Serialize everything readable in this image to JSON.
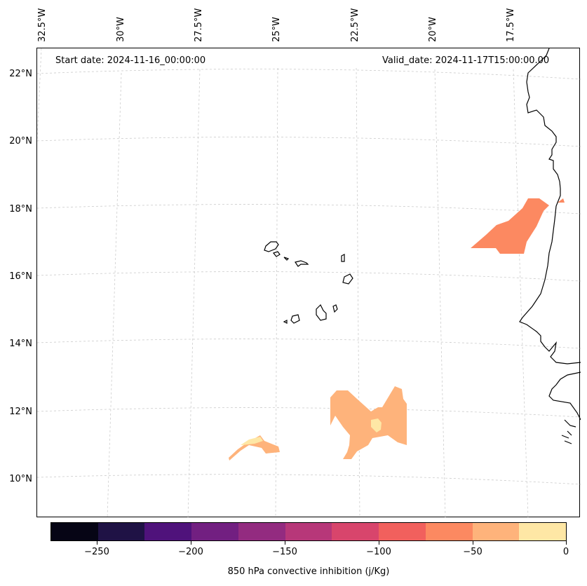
{
  "map": {
    "start_date": "Start date: 2024-11-16_00:00:00",
    "valid_date": "Valid_date: 2024-11-17T15:00:00.00",
    "lon_labels": [
      "32.5°W",
      "30°W",
      "27.5°W",
      "25°W",
      "22.5°W",
      "20°W",
      "17.5°W"
    ],
    "lat_labels": [
      "22°N",
      "20°N",
      "18°N",
      "16°N",
      "14°N",
      "12°N",
      "10°N"
    ],
    "gridlines": true,
    "coastline_color": "#000000"
  },
  "colorbar": {
    "label": "850 hPa convective inhibition (j/Kg)",
    "ticks": [
      "−250",
      "−200",
      "−150",
      "−100",
      "−50",
      "0"
    ],
    "tick_values": [
      -250,
      -200,
      -150,
      -100,
      -50,
      0
    ],
    "range": [
      -275,
      0
    ],
    "colors": [
      "#060515",
      "#1f1245",
      "#4f127b",
      "#721f81",
      "#932b80",
      "#b73779",
      "#d8456c",
      "#f1605d",
      "#fc8961",
      "#feb37b",
      "#fee7a5"
    ]
  },
  "cin_patches": [
    {
      "name": "near-coast-patch",
      "value": -75,
      "color": "#fc8961"
    },
    {
      "name": "southern-patch",
      "value": -50,
      "color": "#feb37b"
    },
    {
      "name": "southern-core",
      "value": -25,
      "color": "#fee7a5"
    },
    {
      "name": "southwest-patch",
      "value": -50,
      "color": "#feb37b"
    },
    {
      "name": "southwest-core",
      "value": -25,
      "color": "#fee7a5"
    }
  ]
}
